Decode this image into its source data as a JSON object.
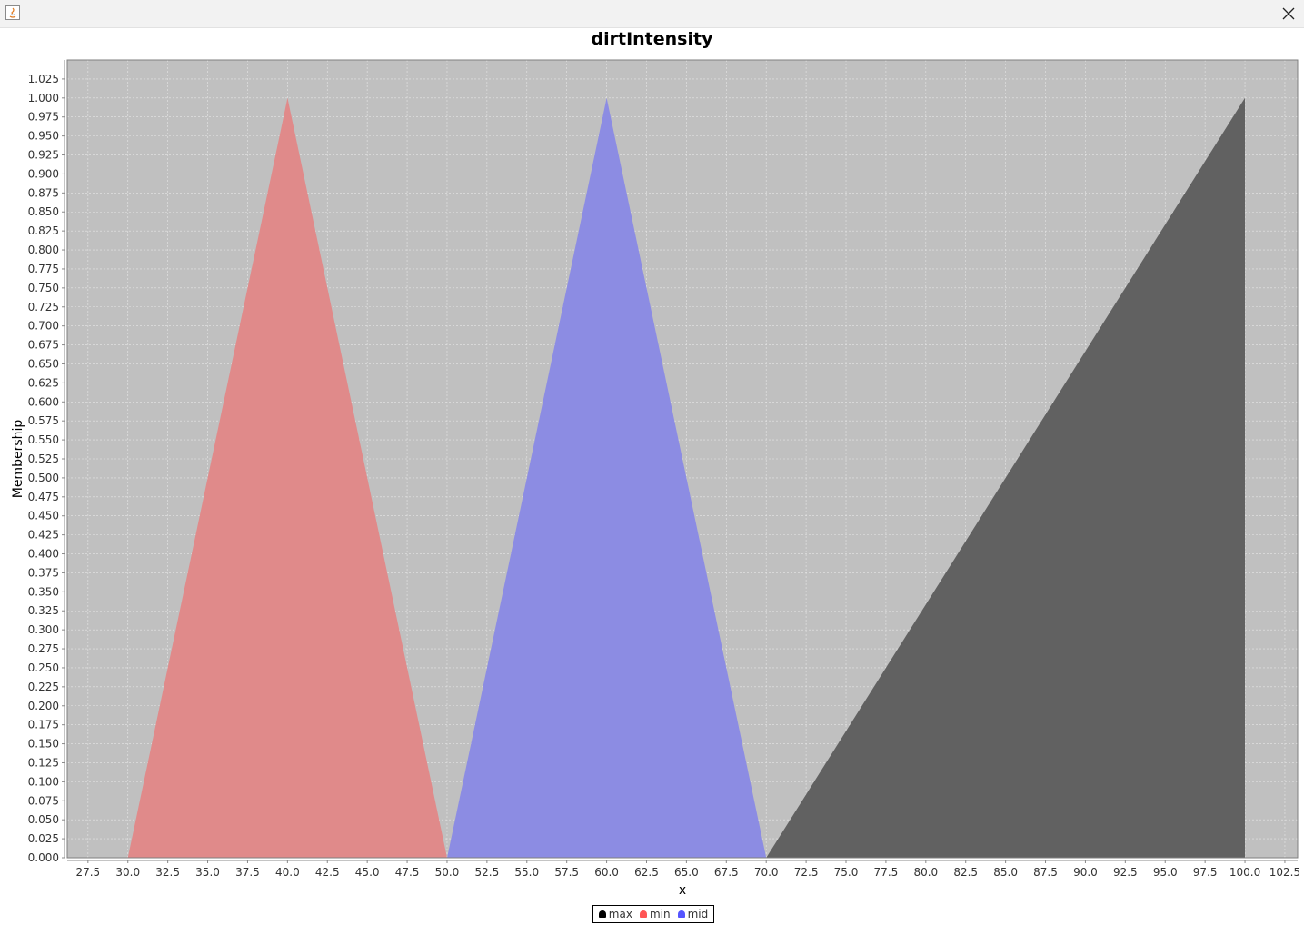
{
  "chart_data": {
    "type": "area",
    "title": "dirtIntensity",
    "xlabel": "x",
    "ylabel": "Membership",
    "xlim": [
      26.2,
      103.3
    ],
    "ylim": [
      0,
      1.05
    ],
    "x_ticks": [
      "27.5",
      "30.0",
      "32.5",
      "35.0",
      "37.5",
      "40.0",
      "42.5",
      "45.0",
      "47.5",
      "50.0",
      "52.5",
      "55.0",
      "57.5",
      "60.0",
      "62.5",
      "65.0",
      "67.5",
      "70.0",
      "72.5",
      "75.0",
      "77.5",
      "80.0",
      "82.5",
      "85.0",
      "87.5",
      "90.0",
      "92.5",
      "95.0",
      "97.5",
      "100.0",
      "102.5"
    ],
    "y_ticks": [
      "0.000",
      "0.025",
      "0.050",
      "0.075",
      "0.100",
      "0.125",
      "0.150",
      "0.175",
      "0.200",
      "0.225",
      "0.250",
      "0.275",
      "0.300",
      "0.325",
      "0.350",
      "0.375",
      "0.400",
      "0.425",
      "0.450",
      "0.475",
      "0.500",
      "0.525",
      "0.550",
      "0.575",
      "0.600",
      "0.625",
      "0.650",
      "0.675",
      "0.700",
      "0.725",
      "0.750",
      "0.775",
      "0.800",
      "0.825",
      "0.850",
      "0.875",
      "0.900",
      "0.925",
      "0.950",
      "0.975",
      "1.000",
      "1.025"
    ],
    "grid": true,
    "legend_position": "bottom-center",
    "series": [
      {
        "name": "max",
        "color": "#616161",
        "x": [
          70,
          100,
          100
        ],
        "y": [
          0,
          1,
          0
        ]
      },
      {
        "name": "min",
        "color": "#e08a8a",
        "x": [
          30,
          40,
          50
        ],
        "y": [
          0,
          1,
          0
        ]
      },
      {
        "name": "mid",
        "color": "#8c8ce3",
        "x": [
          50,
          60,
          70
        ],
        "y": [
          0,
          1,
          0
        ]
      }
    ],
    "legend_colors": {
      "max": "#000000",
      "min": "#ff5555",
      "mid": "#5555ff"
    },
    "plot_background": "#c0c0c0"
  }
}
